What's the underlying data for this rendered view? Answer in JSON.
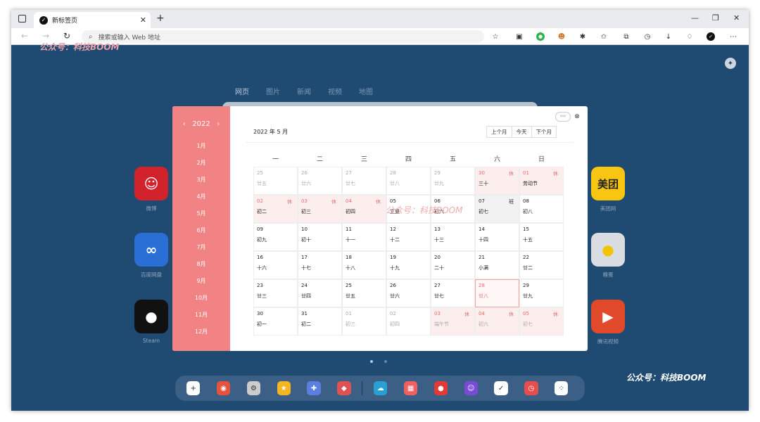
{
  "browser": {
    "tab_title": "新标签页",
    "address_placeholder": "搜索或输入 Web 地址"
  },
  "watermark": "公众号：科技BOOM",
  "search_tabs": [
    "网页",
    "图片",
    "新闻",
    "视频",
    "地图"
  ],
  "apps": [
    {
      "label": "微博",
      "color": "#d2232c",
      "glyph": "☺"
    },
    {
      "label": "百度网盘",
      "color": "#2a6fd6",
      "glyph": "∞"
    },
    {
      "label": "Steam",
      "color": "#111111",
      "glyph": "●"
    },
    {
      "label": "美团网",
      "color": "#f8c513",
      "glyph": "美团"
    },
    {
      "label": "糗蛋",
      "color": "#d9dde2",
      "glyph": "●"
    },
    {
      "label": "腾讯视频",
      "color": "#e04a2a",
      "glyph": "▶"
    }
  ],
  "dock": [
    {
      "color": "#ffffff",
      "glyph": "+"
    },
    {
      "color": "#e8513c",
      "glyph": "◉"
    },
    {
      "color": "#cccccc",
      "glyph": "⚙"
    },
    {
      "color": "#f5b521",
      "glyph": "★"
    },
    {
      "color": "#5b7fe0",
      "glyph": "✚"
    },
    {
      "color": "#e05252",
      "glyph": "◆"
    },
    {
      "color": "#27a1d4",
      "glyph": "☁"
    },
    {
      "color": "#f06060",
      "glyph": "▦"
    },
    {
      "color": "#e53935",
      "glyph": "●"
    },
    {
      "color": "#7a4ad6",
      "glyph": "☺"
    },
    {
      "color": "#ffffff",
      "glyph": "✓"
    },
    {
      "color": "#e84d4d",
      "glyph": "◷"
    },
    {
      "color": "#ffffff",
      "glyph": "⁘"
    }
  ],
  "calendar": {
    "year_label": "2022",
    "prev_year": "‹",
    "next_year": "›",
    "months": [
      "1月",
      "2月",
      "3月",
      "4月",
      "5月",
      "6月",
      "7月",
      "8月",
      "9月",
      "10月",
      "11月",
      "12月"
    ],
    "current_month": "2022 年 5 月",
    "buttons": {
      "prev": "上个月",
      "today": "今天",
      "next": "下个月"
    },
    "weekdays": [
      "一",
      "二",
      "三",
      "四",
      "五",
      "六",
      "日"
    ],
    "days": [
      {
        "n": "25",
        "l": "廿五",
        "t": "other"
      },
      {
        "n": "26",
        "l": "廿六",
        "t": "other"
      },
      {
        "n": "27",
        "l": "廿七",
        "t": "other"
      },
      {
        "n": "28",
        "l": "廿八",
        "t": "other"
      },
      {
        "n": "29",
        "l": "廿九",
        "t": "other"
      },
      {
        "n": "30",
        "l": "三十",
        "t": "hol",
        "b": "休"
      },
      {
        "n": "01",
        "l": "劳动节",
        "t": "hol",
        "b": "休"
      },
      {
        "n": "02",
        "l": "初二",
        "t": "hol",
        "b": "休"
      },
      {
        "n": "03",
        "l": "初三",
        "t": "hol",
        "b": "休"
      },
      {
        "n": "04",
        "l": "初四",
        "t": "hol",
        "b": "休"
      },
      {
        "n": "05",
        "l": "立夏",
        "t": ""
      },
      {
        "n": "06",
        "l": "初六",
        "t": ""
      },
      {
        "n": "07",
        "l": "初七",
        "t": "wkd",
        "b": "班"
      },
      {
        "n": "08",
        "l": "初八",
        "t": ""
      },
      {
        "n": "09",
        "l": "初九",
        "t": ""
      },
      {
        "n": "10",
        "l": "初十",
        "t": ""
      },
      {
        "n": "11",
        "l": "十一",
        "t": ""
      },
      {
        "n": "12",
        "l": "十二",
        "t": ""
      },
      {
        "n": "13",
        "l": "十三",
        "t": ""
      },
      {
        "n": "14",
        "l": "十四",
        "t": ""
      },
      {
        "n": "15",
        "l": "十五",
        "t": ""
      },
      {
        "n": "16",
        "l": "十六",
        "t": ""
      },
      {
        "n": "17",
        "l": "十七",
        "t": ""
      },
      {
        "n": "18",
        "l": "十八",
        "t": ""
      },
      {
        "n": "19",
        "l": "十九",
        "t": ""
      },
      {
        "n": "20",
        "l": "二十",
        "t": ""
      },
      {
        "n": "21",
        "l": "小满",
        "t": ""
      },
      {
        "n": "22",
        "l": "廿二",
        "t": ""
      },
      {
        "n": "23",
        "l": "廿三",
        "t": ""
      },
      {
        "n": "24",
        "l": "廿四",
        "t": ""
      },
      {
        "n": "25",
        "l": "廿五",
        "t": ""
      },
      {
        "n": "26",
        "l": "廿六",
        "t": ""
      },
      {
        "n": "27",
        "l": "廿七",
        "t": ""
      },
      {
        "n": "28",
        "l": "廿八",
        "t": "today"
      },
      {
        "n": "29",
        "l": "廿九",
        "t": ""
      },
      {
        "n": "30",
        "l": "初一",
        "t": ""
      },
      {
        "n": "31",
        "l": "初二",
        "t": ""
      },
      {
        "n": "01",
        "l": "初三",
        "t": "other"
      },
      {
        "n": "02",
        "l": "初四",
        "t": "other"
      },
      {
        "n": "03",
        "l": "端午节",
        "t": "other hol",
        "b": "休"
      },
      {
        "n": "04",
        "l": "初六",
        "t": "other hol",
        "b": "休"
      },
      {
        "n": "05",
        "l": "初七",
        "t": "other hol",
        "b": "休"
      }
    ]
  }
}
